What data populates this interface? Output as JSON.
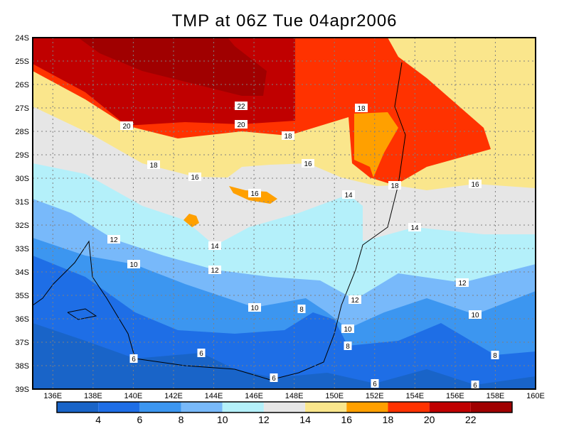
{
  "title": "TMP at 06Z Tue 04apr2006",
  "axes": {
    "lon_ticks": [
      "136E",
      "138E",
      "140E",
      "142E",
      "144E",
      "146E",
      "148E",
      "150E",
      "152E",
      "154E",
      "156E",
      "158E",
      "160E"
    ],
    "lat_ticks": [
      "24S",
      "25S",
      "26S",
      "27S",
      "28S",
      "29S",
      "30S",
      "31S",
      "32S",
      "33S",
      "34S",
      "35S",
      "36S",
      "37S",
      "38S",
      "39S"
    ]
  },
  "colorbar": {
    "labels": [
      "4",
      "6",
      "8",
      "10",
      "12",
      "14",
      "16",
      "18",
      "20",
      "22"
    ],
    "colors": [
      "#1964c8",
      "#1e6ee6",
      "#3c96f0",
      "#78b9fa",
      "#b4f0fa",
      "#e6e6e6",
      "#fae68c",
      "#ffa000",
      "#ff3200",
      "#c00000",
      "#a00000"
    ]
  },
  "contour_labels": [
    "22",
    "20",
    "20",
    "18",
    "18",
    "18",
    "18",
    "16",
    "16",
    "16",
    "16",
    "14",
    "14",
    "14",
    "12",
    "12",
    "12",
    "12",
    "10",
    "10",
    "10",
    "10",
    "8",
    "8",
    "8",
    "6",
    "6",
    "6",
    "6",
    "6"
  ],
  "chart_data": {
    "type": "heatmap",
    "title": "TMP at 06Z Tue 04apr2006",
    "variable": "TMP",
    "xlabel": "",
    "ylabel": "",
    "xlim": [
      135,
      160
    ],
    "ylim": [
      -39,
      -24
    ],
    "contour_levels": [
      4,
      6,
      8,
      10,
      12,
      14,
      16,
      18,
      20,
      22
    ],
    "grid": true,
    "legend": "bottom"
  }
}
